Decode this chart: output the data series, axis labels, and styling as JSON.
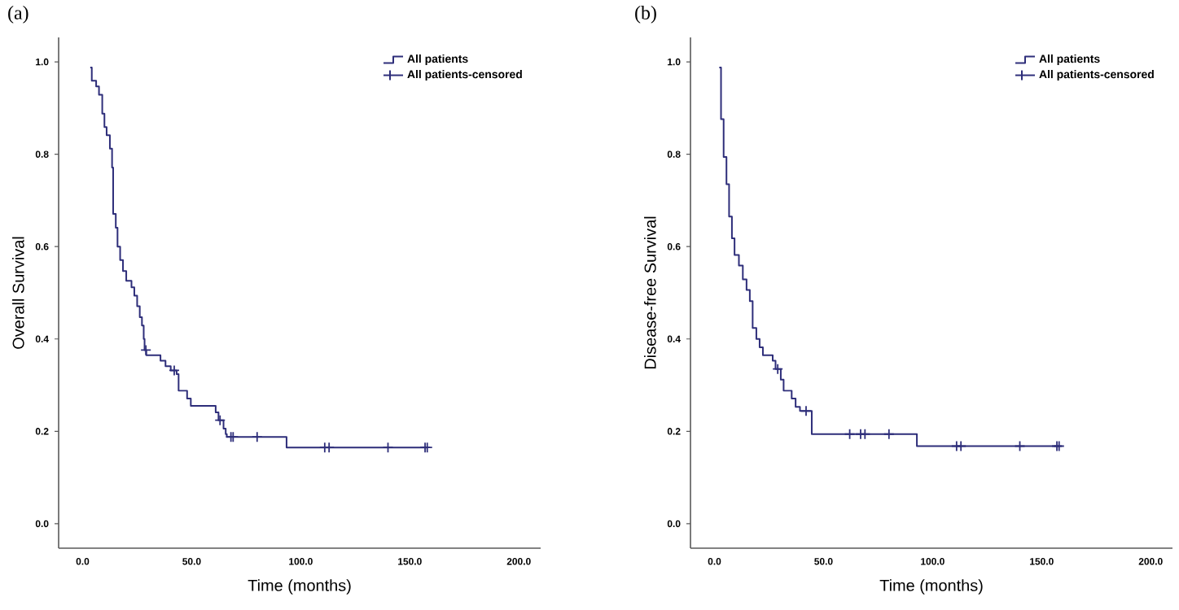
{
  "chart_data": [
    {
      "type": "step",
      "title": "(a)",
      "xlabel": "Time (months)",
      "ylabel": "Overall Survival",
      "xlim": [
        -11,
        210
      ],
      "ylim": [
        -0.053,
        1.053
      ],
      "xticks": [
        {
          "value": 0,
          "label": "0.0"
        },
        {
          "value": 50,
          "label": "50.0"
        },
        {
          "value": 100,
          "label": "100.0"
        },
        {
          "value": 150,
          "label": "150.0"
        },
        {
          "value": 200,
          "label": "200.0"
        }
      ],
      "yticks": [
        {
          "value": 0,
          "label": "0.0"
        },
        {
          "value": 0.2,
          "label": "0.2"
        },
        {
          "value": 0.4,
          "label": "0.4"
        },
        {
          "value": 0.6,
          "label": "0.6"
        },
        {
          "value": 0.8,
          "label": "0.8"
        },
        {
          "value": 1,
          "label": "1.0"
        }
      ],
      "legend": "top right",
      "grid": false,
      "series": [
        {
          "name": "All patients",
          "color": "#2e2e7a",
          "x": [
            3.5,
            4.2,
            6.2,
            7.5,
            9,
            10,
            11,
            12.5,
            13.5,
            14,
            15.2,
            16,
            17.2,
            18.5,
            20,
            22.4,
            23.7,
            25,
            26.2,
            27.2,
            28,
            28.4,
            29.2,
            35.7,
            38,
            40.4,
            43.1,
            44,
            47.9,
            49.6,
            61,
            62.3,
            64.6,
            65.6,
            66.1,
            93.5,
            158
          ],
          "values": [
            0.988,
            0.959,
            0.947,
            0.929,
            0.888,
            0.859,
            0.841,
            0.812,
            0.771,
            0.671,
            0.641,
            0.6,
            0.571,
            0.547,
            0.526,
            0.512,
            0.494,
            0.471,
            0.447,
            0.429,
            0.4,
            0.376,
            0.365,
            0.353,
            0.341,
            0.332,
            0.324,
            0.288,
            0.271,
            0.255,
            0.241,
            0.224,
            0.206,
            0.194,
            0.188,
            0.165,
            0.165
          ]
        },
        {
          "name": "All patients-censored",
          "type": "scatter",
          "marker": "cross",
          "color": "#2e2e7a",
          "x": [
            29,
            42,
            63,
            68,
            69,
            80,
            111,
            113,
            140,
            157,
            158
          ],
          "values": [
            0.376,
            0.332,
            0.224,
            0.188,
            0.188,
            0.188,
            0.165,
            0.165,
            0.165,
            0.165,
            0.165
          ]
        }
      ]
    },
    {
      "type": "step",
      "title": "(b)",
      "xlabel": "Time (months)",
      "ylabel": "Disease-free Survival",
      "xlim": [
        -11,
        210
      ],
      "ylim": [
        -0.053,
        1.053
      ],
      "xticks": [
        {
          "value": 0,
          "label": "0.0"
        },
        {
          "value": 50,
          "label": "50.0"
        },
        {
          "value": 100,
          "label": "100.0"
        },
        {
          "value": 150,
          "label": "150.0"
        },
        {
          "value": 200,
          "label": "200.0"
        }
      ],
      "yticks": [
        {
          "value": 0,
          "label": "0.0"
        },
        {
          "value": 0.2,
          "label": "0.2"
        },
        {
          "value": 0.4,
          "label": "0.4"
        },
        {
          "value": 0.6,
          "label": "0.6"
        },
        {
          "value": 0.8,
          "label": "0.8"
        },
        {
          "value": 1,
          "label": "1.0"
        }
      ],
      "legend": "top right",
      "grid": false,
      "series": [
        {
          "name": "All patients",
          "color": "#2e2e7a",
          "x": [
            2.2,
            3,
            4.2,
            5.5,
            6.7,
            8,
            9.2,
            11.2,
            13,
            14.7,
            16.2,
            17.5,
            19.2,
            20.7,
            22.2,
            26.7,
            28,
            30.4,
            31.7,
            35.4,
            37.2,
            39.2,
            44.6,
            92.8,
            158
          ],
          "values": [
            0.988,
            0.876,
            0.794,
            0.735,
            0.665,
            0.618,
            0.582,
            0.559,
            0.529,
            0.506,
            0.482,
            0.424,
            0.4,
            0.382,
            0.365,
            0.353,
            0.335,
            0.312,
            0.288,
            0.271,
            0.253,
            0.244,
            0.194,
            0.168,
            0.168
          ]
        },
        {
          "name": "All patients-censored",
          "type": "scatter",
          "marker": "cross",
          "color": "#2e2e7a",
          "x": [
            29,
            42,
            62,
            67,
            69,
            80,
            111,
            113,
            140,
            157,
            158
          ],
          "values": [
            0.335,
            0.244,
            0.194,
            0.194,
            0.194,
            0.194,
            0.168,
            0.168,
            0.168,
            0.168,
            0.168
          ]
        }
      ]
    }
  ]
}
